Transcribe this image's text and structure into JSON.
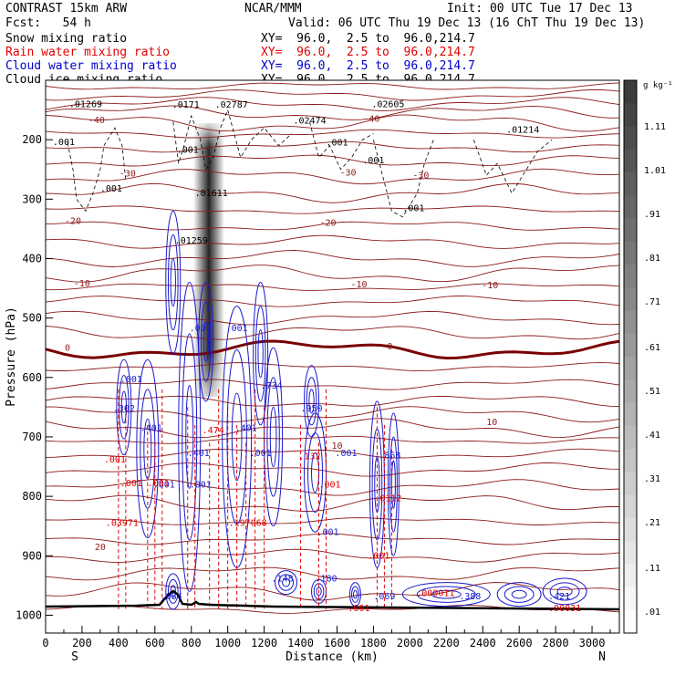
{
  "header": {
    "model": "CONTRAST 15km ARW",
    "fcst": "Fcst:   54 h",
    "org": "NCAR/MMM",
    "init": "Init: 00 UTC Tue 17 Dec 13",
    "valid": "Valid: 06 UTC Thu 19 Dec 13 (16 ChT Thu 19 Dec 13)",
    "fields": [
      {
        "name": "Snow mixing ratio",
        "color": "#000000",
        "xy": "XY=  96.0,  2.5 to  96.0,214.7"
      },
      {
        "name": "Rain water mixing ratio",
        "color": "#e00000",
        "xy": "XY=  96.0,  2.5 to  96.0,214.7"
      },
      {
        "name": "Cloud water mixing ratio",
        "color": "#0000cc",
        "xy": "XY=  96.0,  2.5 to  96.0,214.7"
      },
      {
        "name": "Cloud ice mixing ratio",
        "color": "#000000",
        "xy": "XY=  96.0,  2.5 to  96.0,214.7"
      }
    ]
  },
  "chart_data": {
    "type": "cross-section",
    "xlabel": "Distance (km)",
    "ylabel": "Pressure (hPa)",
    "x_ticks": [
      0,
      200,
      400,
      600,
      800,
      1000,
      1200,
      1400,
      1600,
      1800,
      2000,
      2200,
      2400,
      2600,
      2800,
      3000
    ],
    "x_lim": [
      0,
      3150
    ],
    "y_ticks": [
      200,
      300,
      400,
      500,
      600,
      700,
      800,
      900,
      1000
    ],
    "y_lim": [
      100,
      1030
    ],
    "y_reversed": true,
    "x_ends": {
      "left": "S",
      "right": "N"
    },
    "colorbar": {
      "unit": "g kg⁻¹",
      "labels": [
        "1.11",
        "1.01",
        ".91",
        ".81",
        ".71",
        ".61",
        ".51",
        ".41",
        ".31",
        ".21",
        ".11",
        ".01"
      ]
    },
    "temperature_labels": [
      {
        "text": "-40",
        "x": 280,
        "p": 172
      },
      {
        "text": "-40",
        "x": 1790,
        "p": 170
      },
      {
        "text": "-30",
        "x": 450,
        "p": 262
      },
      {
        "text": "-30",
        "x": 1660,
        "p": 260
      },
      {
        "text": "-30",
        "x": 2060,
        "p": 265
      },
      {
        "text": "-20",
        "x": 150,
        "p": 342
      },
      {
        "text": "-20",
        "x": 1550,
        "p": 345
      },
      {
        "text": "-10",
        "x": 200,
        "p": 447
      },
      {
        "text": "-10",
        "x": 1720,
        "p": 448
      },
      {
        "text": "-10",
        "x": 2440,
        "p": 450
      },
      {
        "text": "0",
        "x": 120,
        "p": 555
      },
      {
        "text": "0",
        "x": 1890,
        "p": 553
      },
      {
        "text": "10",
        "x": 1600,
        "p": 720
      },
      {
        "text": "10",
        "x": 2450,
        "p": 680
      },
      {
        "text": "20",
        "x": 300,
        "p": 890
      }
    ],
    "snow_labels": [
      {
        "text": ".01269",
        "x": 220,
        "p": 145
      },
      {
        "text": ".0171",
        "x": 770,
        "p": 146
      },
      {
        "text": ".02787",
        "x": 1020,
        "p": 146
      },
      {
        "text": ".02474",
        "x": 1450,
        "p": 173
      },
      {
        "text": ".02605",
        "x": 1880,
        "p": 145
      },
      {
        "text": ".01214",
        "x": 2620,
        "p": 188
      },
      {
        "text": ".001",
        "x": 100,
        "p": 209
      },
      {
        "text": ".001",
        "x": 780,
        "p": 222
      },
      {
        "text": ".001",
        "x": 1600,
        "p": 210
      },
      {
        "text": ".001",
        "x": 1800,
        "p": 240
      },
      {
        "text": ".001",
        "x": 360,
        "p": 287
      },
      {
        "text": ".01611",
        "x": 910,
        "p": 295
      },
      {
        "text": ".001",
        "x": 2020,
        "p": 320
      },
      {
        "text": ".01259",
        "x": 800,
        "p": 375
      }
    ],
    "cloud_water_labels": [
      {
        "text": ".001",
        "x": 470,
        "p": 608
      },
      {
        "text": ".302",
        "x": 430,
        "p": 657
      },
      {
        "text": ".401",
        "x": 580,
        "p": 690
      },
      {
        "text": ".001",
        "x": 850,
        "p": 522
      },
      {
        "text": ".001",
        "x": 1050,
        "p": 522
      },
      {
        "text": ".734",
        "x": 1240,
        "p": 619
      },
      {
        "text": ".950",
        "x": 1460,
        "p": 657
      },
      {
        "text": ".401",
        "x": 1100,
        "p": 690
      },
      {
        "text": ".401",
        "x": 840,
        "p": 732
      },
      {
        "text": ".001",
        "x": 1180,
        "p": 732
      },
      {
        "text": ".001",
        "x": 1650,
        "p": 732
      },
      {
        "text": ".868",
        "x": 1890,
        "p": 736
      },
      {
        "text": ".001",
        "x": 650,
        "p": 785
      },
      {
        "text": ".001",
        "x": 850,
        "p": 785
      },
      {
        "text": ".001",
        "x": 1550,
        "p": 865
      },
      {
        "text": ".148",
        "x": 1300,
        "p": 943
      },
      {
        "text": ".180",
        "x": 1540,
        "p": 943
      },
      {
        "text": ".084",
        "x": 690,
        "p": 973
      },
      {
        "text": ".069",
        "x": 1860,
        "p": 973
      },
      {
        "text": ".388",
        "x": 2330,
        "p": 973
      },
      {
        "text": ".421",
        "x": 2820,
        "p": 973
      }
    ],
    "rain_labels": [
      {
        "text": ".001",
        "x": 380,
        "p": 743
      },
      {
        "text": ".001",
        "x": 470,
        "p": 783
      },
      {
        "text": ".001",
        "x": 620,
        "p": 783
      },
      {
        "text": ".001",
        "x": 1560,
        "p": 785
      },
      {
        "text": ".03971",
        "x": 420,
        "p": 850
      },
      {
        "text": ".197068",
        "x": 1110,
        "p": 850
      },
      {
        "text": ".0112",
        "x": 1880,
        "p": 808
      },
      {
        "text": ".132",
        "x": 1450,
        "p": 738
      },
      {
        "text": ".474",
        "x": 920,
        "p": 694
      },
      {
        "text": ".001",
        "x": 1830,
        "p": 905
      },
      {
        "text": ".001",
        "x": 1720,
        "p": 993
      },
      {
        "text": ".000011",
        "x": 2140,
        "p": 968
      },
      {
        "text": ".00031",
        "x": 2850,
        "p": 993
      }
    ]
  }
}
